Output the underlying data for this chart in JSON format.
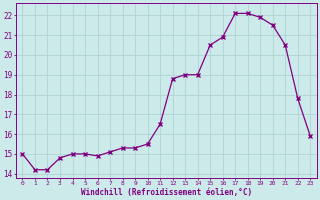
{
  "x": [
    0,
    1,
    2,
    3,
    4,
    5,
    6,
    7,
    8,
    9,
    10,
    11,
    12,
    13,
    14,
    15,
    16,
    17,
    18,
    19,
    20,
    21,
    22,
    23
  ],
  "y": [
    15.0,
    14.2,
    14.2,
    14.8,
    15.0,
    15.0,
    14.9,
    15.1,
    15.3,
    15.3,
    15.5,
    16.5,
    18.8,
    19.0,
    19.0,
    20.5,
    20.9,
    22.1,
    22.1,
    21.9,
    21.5,
    20.5,
    17.8,
    15.9
  ],
  "line_color": "#800080",
  "marker": "x",
  "bg_color": "#cdeaea",
  "grid_color": "#aed4d4",
  "xlabel": "Windchill (Refroidissement éolien,°C)",
  "ylabel_ticks": [
    14,
    15,
    16,
    17,
    18,
    19,
    20,
    21,
    22
  ],
  "xlim": [
    -0.5,
    23.5
  ],
  "ylim": [
    13.8,
    22.6
  ],
  "tick_color": "#800080",
  "label_color": "#800080",
  "font": "monospace"
}
